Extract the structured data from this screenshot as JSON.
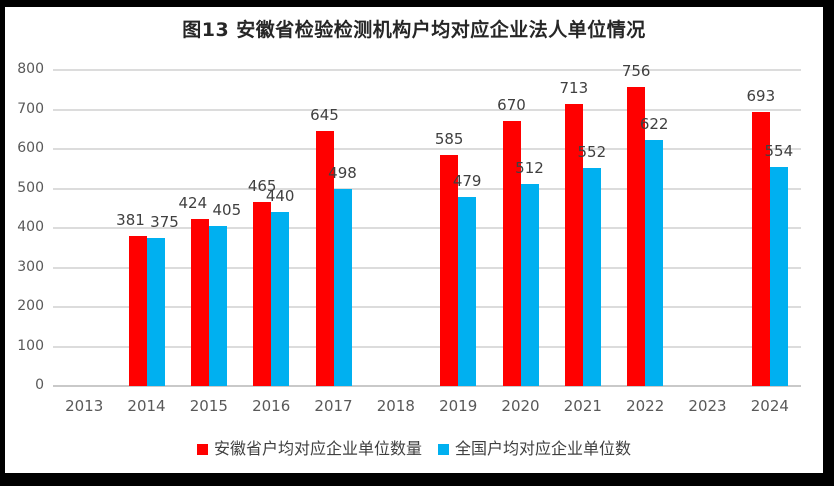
{
  "chart_data": {
    "type": "bar",
    "title": "图13 安徽省检验检测机构户均对应企业法人单位情况",
    "categories": [
      "2013",
      "2014",
      "2015",
      "2016",
      "2017",
      "2018",
      "2019",
      "2020",
      "2021",
      "2022",
      "2023",
      "2024"
    ],
    "series": [
      {
        "name": "安徽省户均对应企业单位数量",
        "color": "#FF0000",
        "values": [
          null,
          381,
          424,
          465,
          645,
          null,
          585,
          670,
          713,
          756,
          null,
          693
        ]
      },
      {
        "name": "全国户均对应企业单位数",
        "color": "#00B0F0",
        "values": [
          null,
          375,
          405,
          440,
          498,
          null,
          479,
          512,
          552,
          622,
          null,
          554
        ]
      }
    ],
    "xlabel": "",
    "ylabel": "",
    "ylim": [
      0,
      800
    ],
    "ytick_interval": 100,
    "yticks": [
      "0",
      "100",
      "200",
      "300",
      "400",
      "500",
      "600",
      "700",
      "800"
    ],
    "grid": true,
    "legend_position": "bottom",
    "data_labels": "outside-end"
  },
  "colors": {
    "bar_red": "#FF0000",
    "bar_blue": "#00B0F0",
    "gridline": "#DCDCDC",
    "axis_line": "#C9C9C9",
    "tick_text": "#595959",
    "data_label_text": "#404040",
    "title_text": "#262626",
    "legend_text": "#404040",
    "frame": "#000000",
    "background": "#FFFFFF"
  }
}
